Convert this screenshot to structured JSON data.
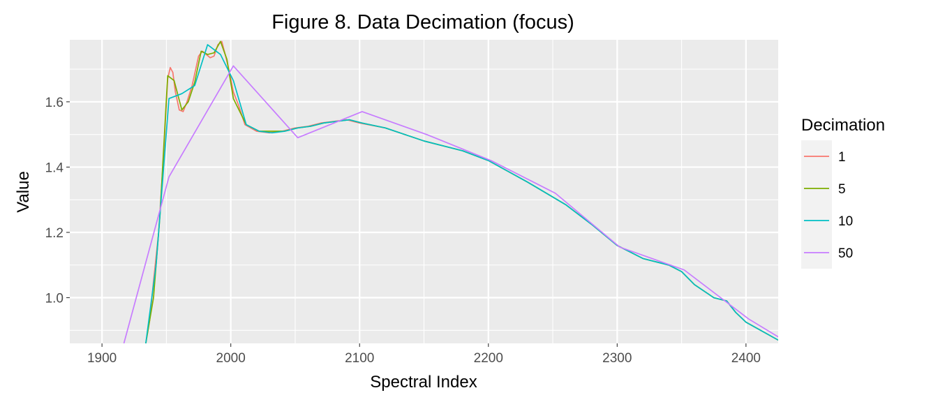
{
  "chart_data": {
    "type": "line",
    "title": "Figure 8. Data Decimation (focus)",
    "xlabel": "Spectral Index",
    "ylabel": "Value",
    "xlim": [
      1875,
      2425
    ],
    "ylim": [
      0.86,
      1.79
    ],
    "x_ticks": [
      1900,
      2000,
      2100,
      2200,
      2300,
      2400
    ],
    "x_tick_labels": [
      "1900",
      "2000",
      "2100",
      "2200",
      "2300",
      "2400"
    ],
    "y_ticks": [
      1.0,
      1.2,
      1.4,
      1.6
    ],
    "y_tick_labels": [
      "1.0",
      "1.2",
      "1.4",
      "1.6"
    ],
    "grid": true,
    "legend": {
      "title": "Decimation",
      "position": "right"
    },
    "series": [
      {
        "name": "1",
        "color": "#F8766D",
        "x": [
          1934,
          1937,
          1940,
          1944,
          1948,
          1951,
          1953,
          1955,
          1957,
          1960,
          1963,
          1966,
          1970,
          1975,
          1978,
          1981,
          1984,
          1987,
          1990,
          1993,
          1996,
          1999,
          2002,
          2006,
          2011,
          2020,
          2030,
          2040,
          2050,
          2060,
          2070,
          2080,
          2090,
          2100,
          2120,
          2150,
          2180,
          2200,
          2230,
          2260,
          2280,
          2300,
          2320,
          2340,
          2350,
          2360,
          2375,
          2385,
          2392,
          2400,
          2425
        ],
        "y": [
          0.86,
          0.93,
          1.05,
          1.2,
          1.45,
          1.67,
          1.705,
          1.69,
          1.63,
          1.575,
          1.57,
          1.6,
          1.65,
          1.74,
          1.755,
          1.745,
          1.735,
          1.74,
          1.775,
          1.785,
          1.74,
          1.69,
          1.63,
          1.59,
          1.53,
          1.51,
          1.505,
          1.51,
          1.52,
          1.525,
          1.535,
          1.54,
          1.545,
          1.535,
          1.52,
          1.48,
          1.45,
          1.42,
          1.355,
          1.285,
          1.225,
          1.16,
          1.12,
          1.1,
          1.08,
          1.04,
          1.0,
          0.99,
          0.955,
          0.925,
          0.87
        ]
      },
      {
        "name": "5",
        "color": "#7CAE00",
        "x": [
          1934,
          1940,
          1945,
          1951,
          1956,
          1962,
          1967,
          1972,
          1977,
          1982,
          1987,
          1992,
          1997,
          2002,
          2012,
          2022,
          2032,
          2042,
          2052,
          2062,
          2072,
          2082,
          2092,
          2102,
          2120,
          2150,
          2180,
          2200,
          2230,
          2260,
          2280,
          2300,
          2320,
          2340,
          2350,
          2360,
          2375,
          2385,
          2392,
          2400,
          2425
        ],
        "y": [
          0.86,
          1.0,
          1.25,
          1.68,
          1.665,
          1.575,
          1.6,
          1.66,
          1.755,
          1.745,
          1.75,
          1.785,
          1.73,
          1.61,
          1.53,
          1.51,
          1.51,
          1.51,
          1.52,
          1.525,
          1.535,
          1.54,
          1.545,
          1.535,
          1.52,
          1.48,
          1.45,
          1.42,
          1.355,
          1.285,
          1.225,
          1.16,
          1.12,
          1.1,
          1.08,
          1.04,
          1.0,
          0.99,
          0.955,
          0.925,
          0.87
        ]
      },
      {
        "name": "10",
        "color": "#00BFC4",
        "x": [
          1934,
          1942,
          1952,
          1962,
          1972,
          1982,
          1992,
          2002,
          2012,
          2022,
          2032,
          2042,
          2052,
          2062,
          2072,
          2082,
          2092,
          2102,
          2120,
          2150,
          2180,
          2200,
          2230,
          2260,
          2280,
          2300,
          2320,
          2340,
          2350,
          2360,
          2375,
          2385,
          2392,
          2400,
          2425
        ],
        "y": [
          0.86,
          1.1,
          1.61,
          1.625,
          1.65,
          1.775,
          1.745,
          1.665,
          1.53,
          1.51,
          1.505,
          1.51,
          1.52,
          1.525,
          1.535,
          1.54,
          1.545,
          1.535,
          1.52,
          1.48,
          1.45,
          1.42,
          1.355,
          1.285,
          1.225,
          1.16,
          1.12,
          1.1,
          1.08,
          1.04,
          1.0,
          0.99,
          0.955,
          0.925,
          0.87
        ]
      },
      {
        "name": "50",
        "color": "#C77CFF",
        "x": [
          1917,
          1952,
          2002,
          2052,
          2102,
          2152,
          2202,
          2252,
          2302,
          2352,
          2402,
          2425
        ],
        "y": [
          0.86,
          1.37,
          1.71,
          1.49,
          1.57,
          1.5,
          1.42,
          1.32,
          1.155,
          1.085,
          0.935,
          0.88
        ]
      }
    ]
  }
}
